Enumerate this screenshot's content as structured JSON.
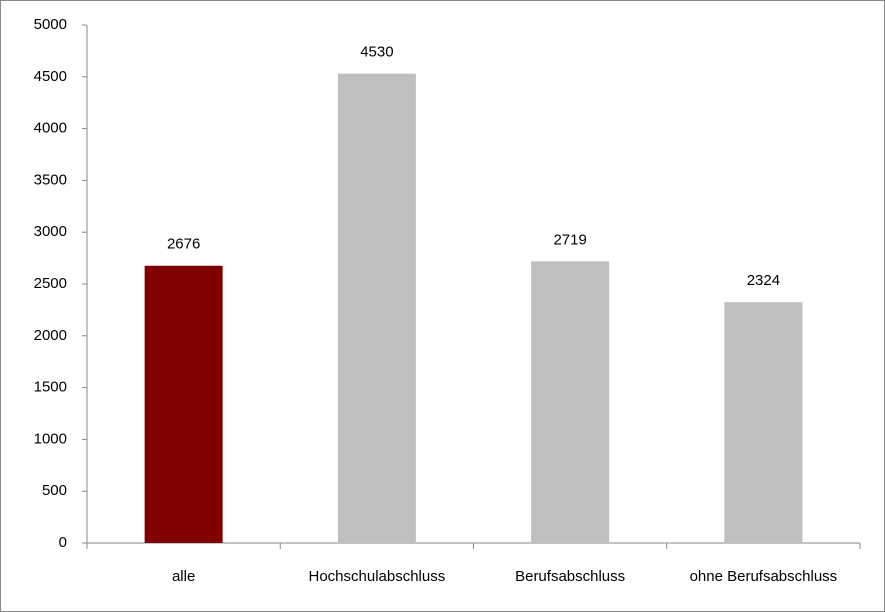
{
  "chart_data": {
    "type": "bar",
    "categories": [
      "alle",
      "Hochschulabschluss",
      "Berufsabschluss",
      "ohne Berufsabschluss"
    ],
    "values": [
      2676,
      4530,
      2719,
      2324
    ],
    "colors": [
      "#800000",
      "#bfbfbf",
      "#bfbfbf",
      "#bfbfbf"
    ],
    "ylim": [
      0,
      5000
    ],
    "yticks": [
      0,
      500,
      1000,
      1500,
      2000,
      2500,
      3000,
      3500,
      4000,
      4500,
      5000
    ],
    "grid": false
  }
}
